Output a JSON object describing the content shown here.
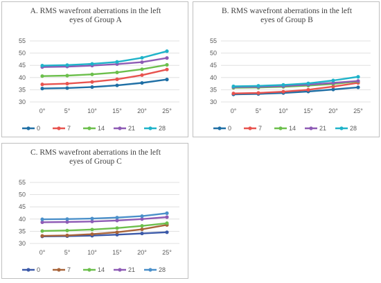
{
  "chart_data": [
    {
      "type": "line",
      "title_lines": [
        "A. RMS wavefront aberrations in the left",
        "eyes of Group A"
      ],
      "categories": [
        "0°",
        "5°",
        "10°",
        "15°",
        "20°",
        "25°"
      ],
      "ylim": [
        30,
        55
      ],
      "yticks": [
        "30",
        "35",
        "40",
        "45",
        "50",
        "55"
      ],
      "grid": true,
      "legend": "bottom",
      "series": [
        {
          "name": "0",
          "color": "#1f6fa5",
          "values": [
            35.5,
            35.7,
            36.1,
            36.8,
            37.8,
            39.2
          ]
        },
        {
          "name": "7",
          "color": "#e8534f",
          "values": [
            37.2,
            37.5,
            38.2,
            39.3,
            41.0,
            43.3
          ]
        },
        {
          "name": "14",
          "color": "#6cbf4c",
          "values": [
            40.6,
            40.8,
            41.3,
            42.1,
            43.4,
            45.2
          ]
        },
        {
          "name": "21",
          "color": "#8e5bb5",
          "values": [
            44.3,
            44.5,
            44.9,
            45.5,
            46.3,
            48.0
          ]
        },
        {
          "name": "28",
          "color": "#1fb3c9",
          "values": [
            44.9,
            45.1,
            45.6,
            46.4,
            48.1,
            50.8
          ]
        }
      ]
    },
    {
      "type": "line",
      "title_lines": [
        "B. RMS wavefront aberrations in the left",
        "eyes of Group B"
      ],
      "categories": [
        "0°",
        "5°",
        "10°",
        "15°",
        "20°",
        "25°"
      ],
      "ylim": [
        30,
        55
      ],
      "yticks": [
        "30",
        "35",
        "40",
        "45",
        "50",
        "55"
      ],
      "grid": true,
      "legend": "bottom",
      "series": [
        {
          "name": "0",
          "color": "#1f6fa5",
          "values": [
            33.1,
            33.3,
            33.7,
            34.3,
            35.1,
            36.0
          ]
        },
        {
          "name": "7",
          "color": "#e8534f",
          "values": [
            33.5,
            33.7,
            34.2,
            35.0,
            36.3,
            37.8
          ]
        },
        {
          "name": "14",
          "color": "#6cbf4c",
          "values": [
            35.8,
            35.9,
            36.2,
            36.7,
            37.4,
            38.4
          ]
        },
        {
          "name": "21",
          "color": "#8e5bb5",
          "values": [
            36.1,
            36.2,
            36.5,
            37.1,
            37.8,
            38.6
          ]
        },
        {
          "name": "28",
          "color": "#1fb3c9",
          "values": [
            36.4,
            36.6,
            37.0,
            37.6,
            38.8,
            40.3
          ]
        }
      ]
    },
    {
      "type": "line",
      "title_lines": [
        "C. RMS wavefront aberrations in the left",
        "eyes of Group C"
      ],
      "categories": [
        "0°",
        "5°",
        "10°",
        "15°",
        "20°",
        "25°"
      ],
      "ylim": [
        30,
        55
      ],
      "yticks": [
        "30",
        "35",
        "40",
        "45",
        "50",
        "55"
      ],
      "grid": true,
      "legend": "bottom",
      "series": [
        {
          "name": "0",
          "color": "#3b59a8",
          "values": [
            32.9,
            33.0,
            33.2,
            33.6,
            34.1,
            34.6
          ]
        },
        {
          "name": "7",
          "color": "#a8643a",
          "values": [
            33.1,
            33.3,
            33.8,
            34.6,
            35.8,
            37.6
          ]
        },
        {
          "name": "14",
          "color": "#6cbf4c",
          "values": [
            35.1,
            35.3,
            35.7,
            36.3,
            37.2,
            38.3
          ]
        },
        {
          "name": "21",
          "color": "#8e5bb5",
          "values": [
            38.7,
            38.8,
            39.0,
            39.4,
            40.0,
            40.8
          ]
        },
        {
          "name": "28",
          "color": "#4a8fc9",
          "values": [
            39.9,
            40.0,
            40.2,
            40.6,
            41.2,
            42.4
          ]
        }
      ]
    }
  ]
}
